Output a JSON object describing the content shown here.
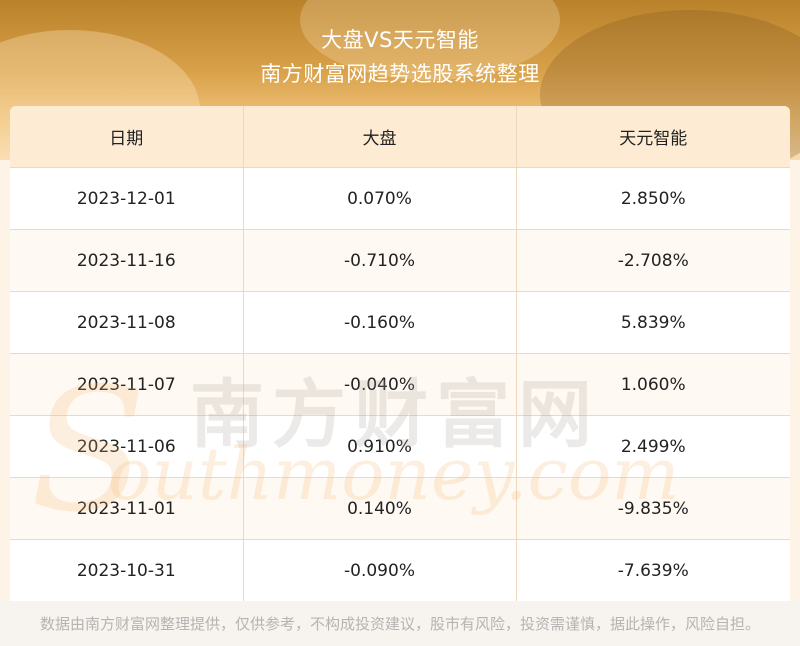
{
  "header": {
    "title": "大盘VS天元智能",
    "subtitle": "南方财富网趋势选股系统整理"
  },
  "table": {
    "columns": [
      "日期",
      "大盘",
      "天元智能"
    ],
    "rows": [
      [
        "2023-12-01",
        "0.070%",
        "2.850%"
      ],
      [
        "2023-11-16",
        "-0.710%",
        "-2.708%"
      ],
      [
        "2023-11-08",
        "-0.160%",
        "5.839%"
      ],
      [
        "2023-11-07",
        "-0.040%",
        "1.060%"
      ],
      [
        "2023-11-06",
        "0.910%",
        "2.499%"
      ],
      [
        "2023-11-01",
        "0.140%",
        "-9.835%"
      ],
      [
        "2023-10-31",
        "-0.090%",
        "-7.639%"
      ]
    ]
  },
  "watermark": {
    "text_cn": "南方财富网",
    "text_en": "outhmoney.com",
    "letter": "S"
  },
  "footer": {
    "disclaimer": "数据由南方财富网整理提供，仅供参考，不构成投资建议，股市有风险，投资需谨慎，据此操作，风险自担。"
  }
}
